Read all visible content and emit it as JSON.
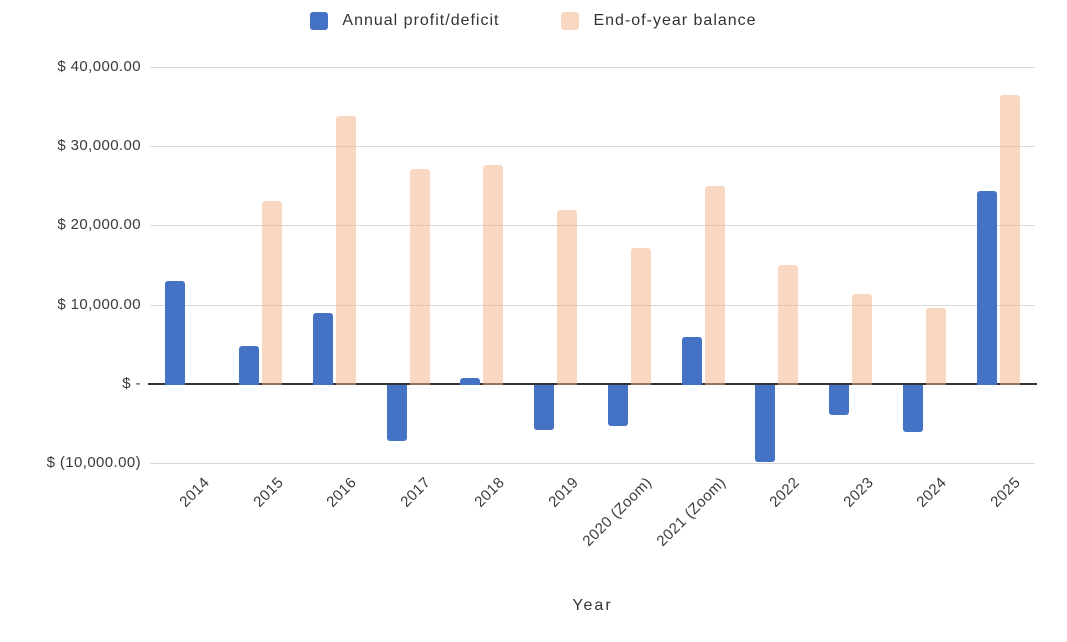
{
  "axes": {
    "x_title": "Year",
    "y_tick_labels": [
      "$ 40,000.00",
      "$ 30,000.00",
      "$ 20,000.00",
      "$ 10,000.00",
      "$ -",
      "$ (10,000.00)"
    ],
    "y_tick_values": [
      40000,
      30000,
      20000,
      10000,
      0,
      -10000
    ]
  },
  "chart_data": {
    "type": "bar",
    "title": "",
    "xlabel": "Year",
    "ylabel": "",
    "categories": [
      "2014",
      "2015",
      "2016",
      "2017",
      "2018",
      "2019",
      "2020 (Zoom)",
      "2021 (Zoom)",
      "2022",
      "2023",
      "2024",
      "2025"
    ],
    "series": [
      {
        "name": "Annual profit/deficit",
        "color": "#4472C4",
        "opacity": 1,
        "values": [
          13000,
          4800,
          9000,
          -7100,
          700,
          -5700,
          -5200,
          5900,
          -9700,
          -3800,
          -6000,
          24300
        ]
      },
      {
        "name": "End-of-year balance",
        "color": "#F4B183",
        "opacity": 0.5,
        "values": [
          null,
          23100,
          33800,
          27100,
          27600,
          21900,
          17100,
          25000,
          15000,
          11300,
          9600,
          36500
        ]
      }
    ],
    "ylim": [
      -10000,
      40000
    ],
    "y_tick_step": 10000,
    "grid": true,
    "legend_position": "top",
    "colors": {
      "gridline": "#D9D9D9",
      "zero_line": "#333333",
      "text": "#404040"
    }
  }
}
